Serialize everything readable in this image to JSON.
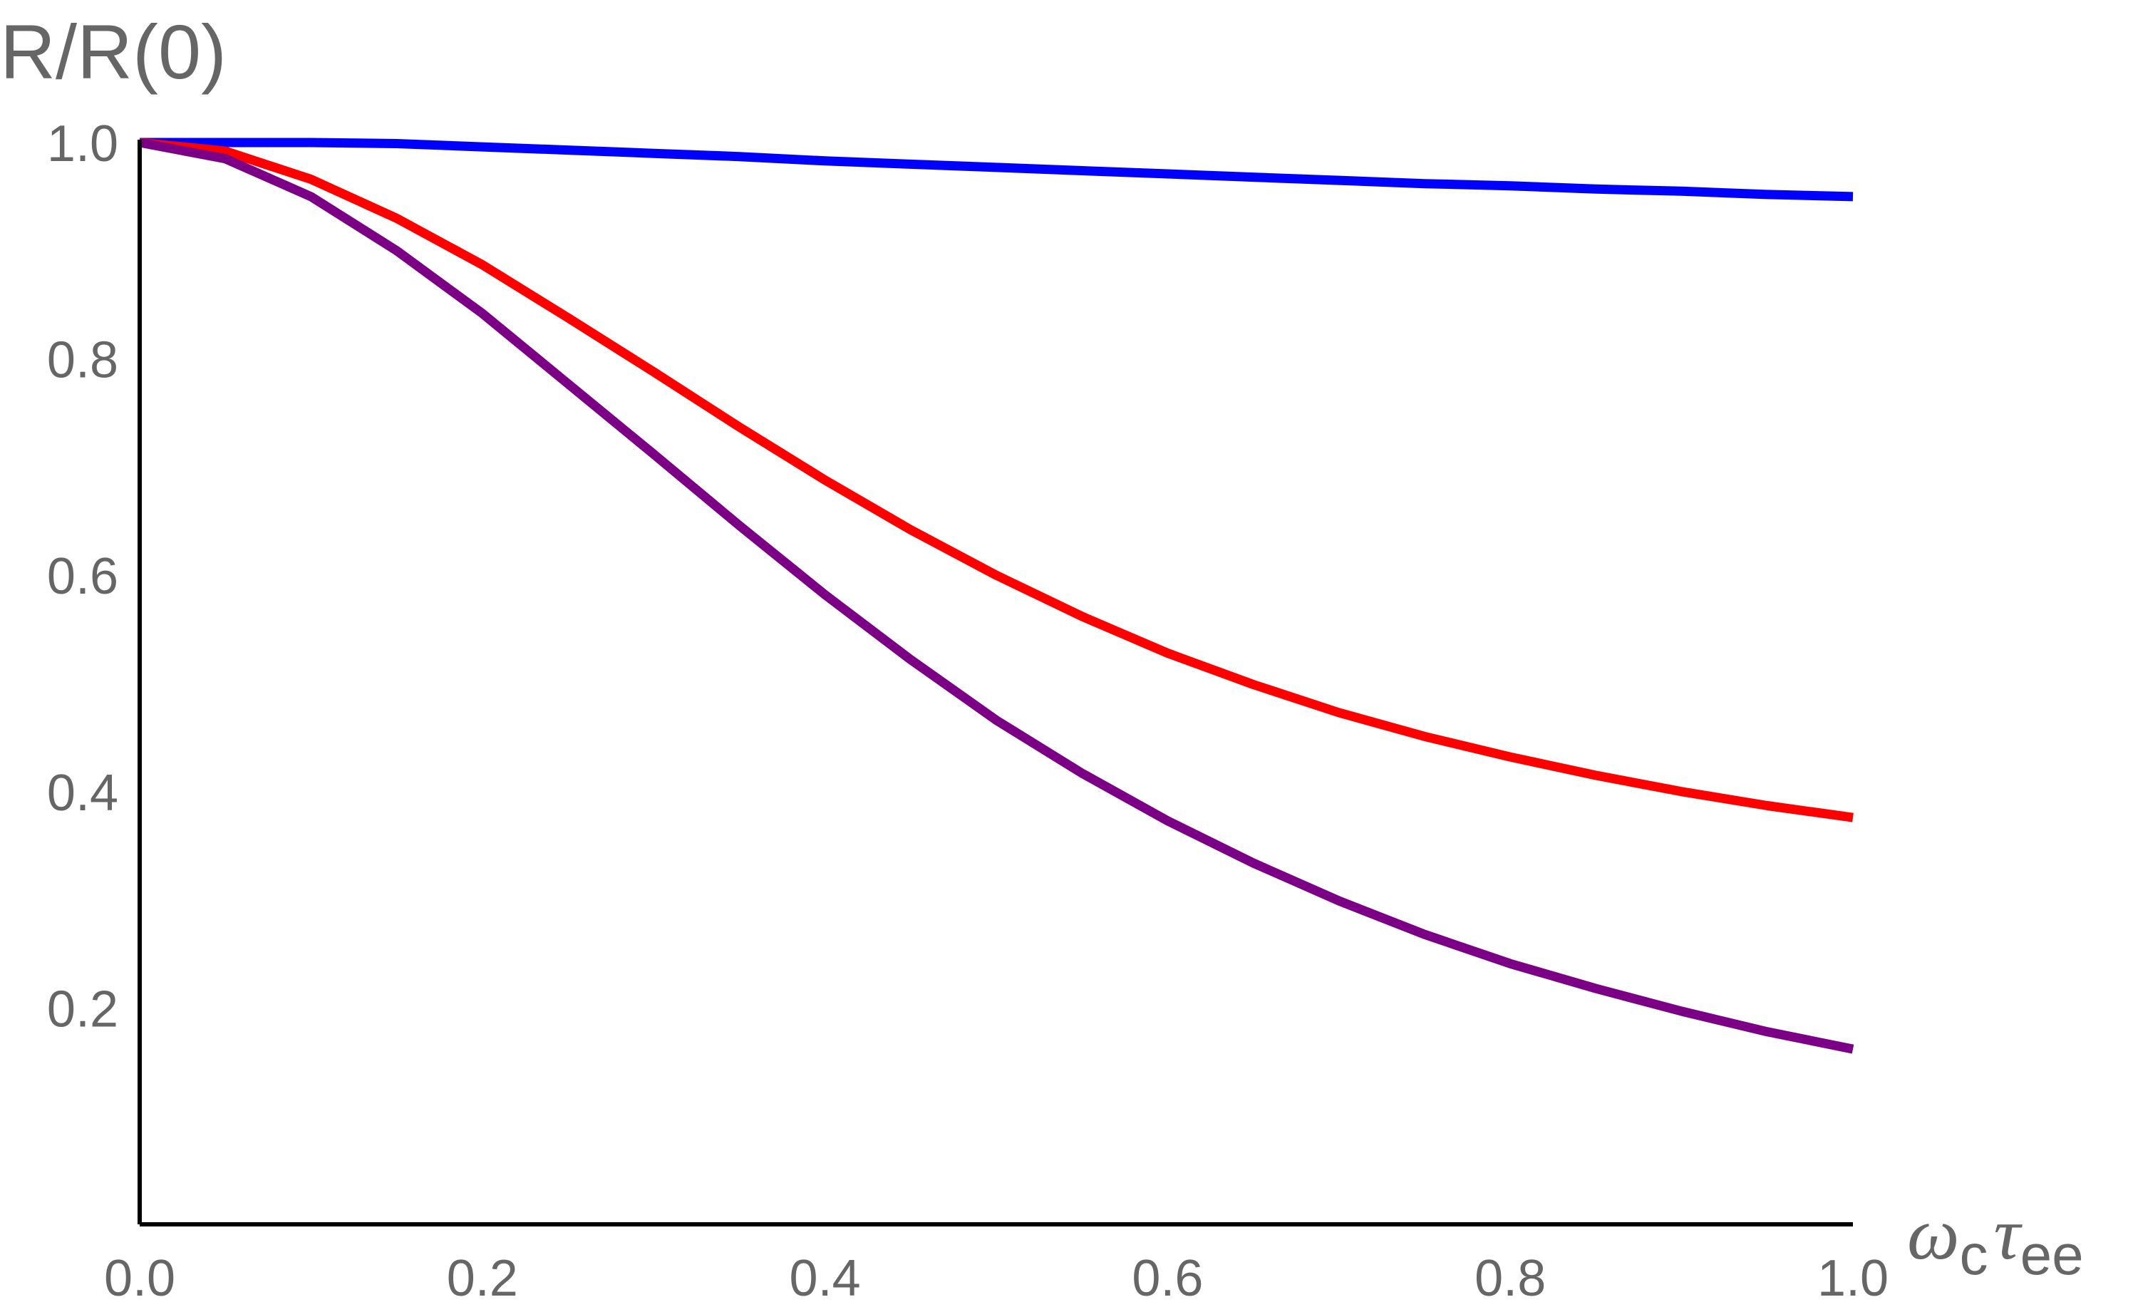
{
  "chart_data": {
    "type": "line",
    "ylabel": "R/R(0)",
    "xlabel": {
      "symbol1": "ω",
      "sub1": "c",
      "symbol2": "τ",
      "sub2": "ee"
    },
    "xlim": [
      0,
      1.0
    ],
    "ylim": [
      0,
      1.0
    ],
    "xticks": [
      "0.0",
      "0.2",
      "0.4",
      "0.6",
      "0.8",
      "1.0"
    ],
    "yticks": [
      "0.2",
      "0.4",
      "0.6",
      "0.8",
      "1.0"
    ],
    "grid": false,
    "x": [
      0.0,
      0.05,
      0.1,
      0.15,
      0.2,
      0.25,
      0.3,
      0.35,
      0.4,
      0.45,
      0.5,
      0.55,
      0.6,
      0.65,
      0.7,
      0.75,
      0.8,
      0.85,
      0.9,
      0.95,
      1.0
    ],
    "series": [
      {
        "color": "#0000ff",
        "values": [
          1.0,
          1.0,
          1.0,
          0.999,
          0.996,
          0.993,
          0.99,
          0.987,
          0.983,
          0.98,
          0.977,
          0.974,
          0.971,
          0.968,
          0.965,
          0.962,
          0.96,
          0.957,
          0.955,
          0.952,
          0.95
        ]
      },
      {
        "color": "#ff0000",
        "values": [
          1.0,
          0.992,
          0.966,
          0.93,
          0.887,
          0.838,
          0.788,
          0.737,
          0.688,
          0.642,
          0.6,
          0.562,
          0.528,
          0.499,
          0.473,
          0.451,
          0.432,
          0.415,
          0.4,
          0.387,
          0.376
        ]
      },
      {
        "color": "#7b0086",
        "values": [
          1.0,
          0.985,
          0.95,
          0.9,
          0.842,
          0.777,
          0.712,
          0.646,
          0.582,
          0.522,
          0.466,
          0.417,
          0.373,
          0.334,
          0.299,
          0.268,
          0.241,
          0.218,
          0.197,
          0.178,
          0.162
        ]
      }
    ]
  }
}
